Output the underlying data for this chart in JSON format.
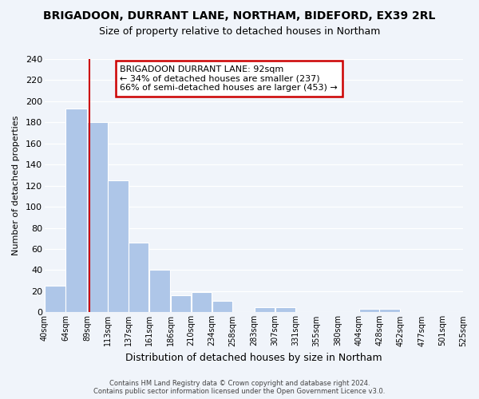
{
  "title": "BRIGADOON, DURRANT LANE, NORTHAM, BIDEFORD, EX39 2RL",
  "subtitle": "Size of property relative to detached houses in Northam",
  "xlabel": "Distribution of detached houses by size in Northam",
  "ylabel": "Number of detached properties",
  "bar_edges": [
    40,
    64,
    89,
    113,
    137,
    161,
    186,
    210,
    234,
    258,
    283,
    307,
    331,
    355,
    380,
    404,
    428,
    452,
    477,
    501,
    525
  ],
  "bar_heights": [
    25,
    193,
    180,
    125,
    66,
    40,
    16,
    19,
    11,
    0,
    5,
    5,
    0,
    0,
    0,
    3,
    3,
    0,
    0,
    0
  ],
  "bar_color": "#aec6e8",
  "bar_edge_color": "#ffffff",
  "property_line_x": 92,
  "property_line_color": "#cc0000",
  "annotation_title": "BRIGADOON DURRANT LANE: 92sqm",
  "annotation_line1": "← 34% of detached houses are smaller (237)",
  "annotation_line2": "66% of semi-detached houses are larger (453) →",
  "annotation_box_color": "#ffffff",
  "annotation_box_edge_color": "#cc0000",
  "tick_labels": [
    "40sqm",
    "64sqm",
    "89sqm",
    "113sqm",
    "137sqm",
    "161sqm",
    "186sqm",
    "210sqm",
    "234sqm",
    "258sqm",
    "283sqm",
    "307sqm",
    "331sqm",
    "355sqm",
    "380sqm",
    "404sqm",
    "428sqm",
    "452sqm",
    "477sqm",
    "501sqm",
    "525sqm"
  ],
  "ylim": [
    0,
    240
  ],
  "yticks": [
    0,
    20,
    40,
    60,
    80,
    100,
    120,
    140,
    160,
    180,
    200,
    220,
    240
  ],
  "footer_line1": "Contains HM Land Registry data © Crown copyright and database right 2024.",
  "footer_line2": "Contains public sector information licensed under the Open Government Licence v3.0.",
  "bg_color": "#f0f4fa",
  "plot_bg_color": "#f0f4fa"
}
